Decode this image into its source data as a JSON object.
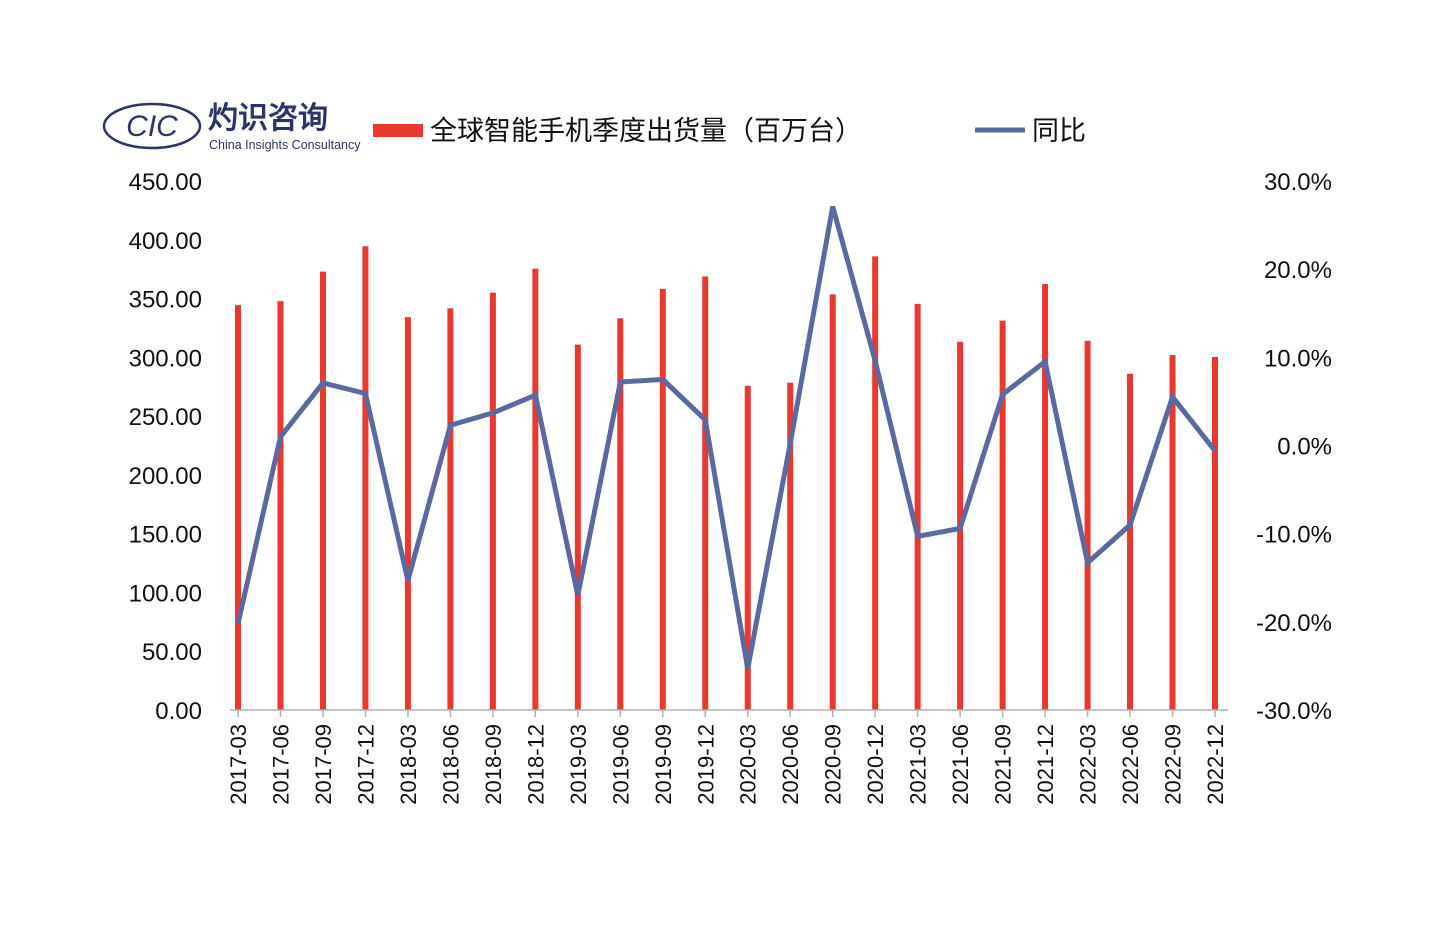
{
  "logo": {
    "mark": "CIC",
    "name_cn": "灼识咨询",
    "name_en": "China Insights Consultancy"
  },
  "colors": {
    "bar": "#e8382f",
    "line": "#5a6aa1",
    "logo": "#2d3567"
  },
  "chart_data": {
    "type": "bar",
    "categories": [
      "2017-03",
      "2017-06",
      "2017-09",
      "2017-12",
      "2018-03",
      "2018-06",
      "2018-09",
      "2018-12",
      "2019-03",
      "2019-06",
      "2019-09",
      "2019-12",
      "2020-03",
      "2020-06",
      "2020-09",
      "2020-12",
      "2021-03",
      "2021-06",
      "2021-09",
      "2021-12",
      "2022-03",
      "2022-06",
      "2022-09",
      "2022-12"
    ],
    "series": [
      {
        "name": "全球智能手机季度出货量（百万台）",
        "type": "bar",
        "axis": "left",
        "values": [
          344.4,
          347.8,
          372.9,
          394.5,
          334.2,
          341.7,
          355.0,
          375.4,
          310.8,
          333.2,
          358.2,
          368.8,
          275.8,
          278.4,
          353.6,
          385.9,
          345.5,
          313.2,
          331.2,
          362.4,
          314.0,
          286.0,
          301.9,
          300.3
        ]
      },
      {
        "name": "同比",
        "type": "line",
        "axis": "right",
        "values": [
          -20.2,
          1.0,
          7.1,
          5.9,
          -15.3,
          2.3,
          3.7,
          5.7,
          -17.0,
          7.2,
          7.5,
          2.9,
          -25.3,
          0.2,
          27.1,
          9.6,
          -10.3,
          -9.4,
          5.8,
          9.5,
          -13.3,
          -9.0,
          5.5,
          -0.6
        ]
      }
    ],
    "left_axis": {
      "ylim": [
        0,
        450
      ],
      "ticks": [
        "0.00",
        "50.00",
        "100.00",
        "150.00",
        "200.00",
        "250.00",
        "300.00",
        "350.00",
        "400.00",
        "450.00"
      ]
    },
    "right_axis": {
      "ylim": [
        -30,
        30
      ],
      "ticks": [
        "-30.0%",
        "-20.0%",
        "-10.0%",
        "0.0%",
        "10.0%",
        "20.0%",
        "30.0%"
      ]
    },
    "grid": false,
    "legend": "top"
  }
}
